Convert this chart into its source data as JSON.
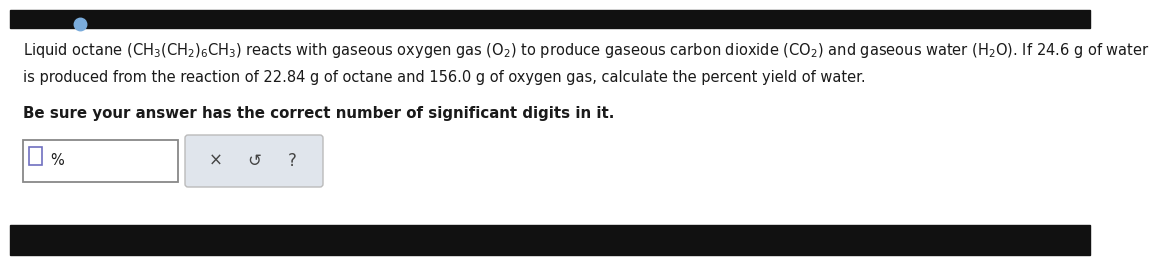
{
  "bg_color": "#ffffff",
  "light_gray": "#f0f0f0",
  "black_bar": "#111111",
  "blue_dot": "#7aacdc",
  "text_color": "#1a1a1a",
  "input_border": "#888888",
  "input_checkbox_border": "#7070c0",
  "btn_bg": "#e0e5ec",
  "btn_border": "#bbbbbb",
  "line1_math": "Liquid octane $\\mathregular{\\left(CH_3\\left(CH_2\\right)_6CH_3\\right)}$ reacts with gaseous oxygen gas $\\mathregular{\\left(O_2\\right)}$ to produce gaseous carbon dioxide $\\mathregular{\\left(CO_2\\right)}$ and gaseous water $\\mathregular{\\left(H_2O\\right)}$. If 24.6 g of water",
  "line2": "is produced from the reaction of 22.84 g of octane and 156.0 g of oxygen gas, calculate the percent yield of water.",
  "line3": "Be sure your answer has the correct number of significant digits in it.",
  "pct": "%",
  "fs_main": 10.5,
  "fs_line3": 10.8
}
